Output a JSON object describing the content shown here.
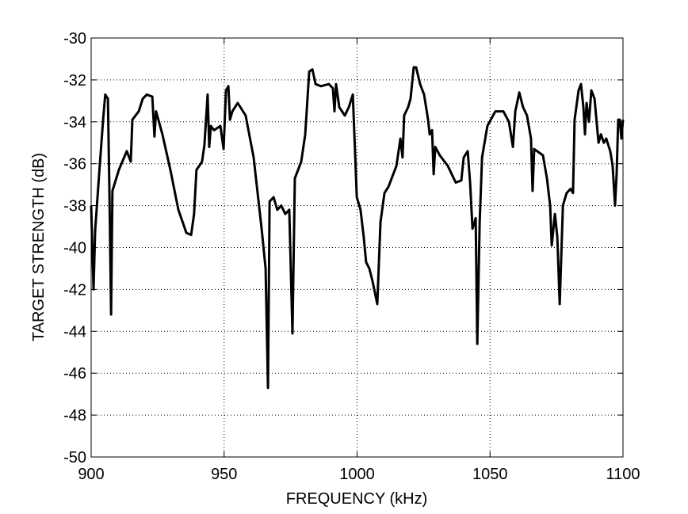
{
  "chart_data": {
    "type": "line",
    "xlabel": "FREQUENCY (kHz)",
    "ylabel": "TARGET STRENGTH (dB)",
    "xlim": [
      900,
      1100
    ],
    "xticks": [
      900,
      950,
      1000,
      1050,
      1100
    ],
    "ylim": [
      -50,
      -30
    ],
    "yticks": [
      -50,
      -48,
      -46,
      -44,
      -42,
      -40,
      -38,
      -36,
      -34,
      -32,
      -30
    ],
    "grid": true,
    "x": [
      900,
      900.9,
      901.5,
      903,
      904.5,
      905.3,
      906.3,
      906.9,
      907.5,
      908,
      910.4,
      913.4,
      914.9,
      915.5,
      917.9,
      919.4,
      920.9,
      923,
      923.8,
      924.4,
      926.8,
      929.8,
      932.8,
      935.8,
      937.6,
      938.7,
      939.6,
      941.7,
      942.6,
      943.8,
      944.4,
      945,
      946.2,
      948.6,
      949.8,
      950.7,
      951.6,
      952.2,
      953.1,
      955.1,
      958.1,
      961.1,
      964.1,
      965.6,
      966.5,
      967.1,
      968.6,
      970,
      971.5,
      973,
      974.5,
      975.7,
      976.6,
      979,
      980.5,
      982,
      983.2,
      984.4,
      986.4,
      989.4,
      990.9,
      991.5,
      992.1,
      993.3,
      995.4,
      996.9,
      998.4,
      999.9,
      1001.3,
      1002.5,
      1003.4,
      1004.6,
      1005.8,
      1007.6,
      1008.8,
      1010.3,
      1011.8,
      1014.8,
      1016.3,
      1017.1,
      1017.7,
      1019.2,
      1020.1,
      1021.3,
      1022.2,
      1023.7,
      1025.2,
      1026.7,
      1027.3,
      1028.2,
      1028.8,
      1029.4,
      1031.1,
      1034.1,
      1037.1,
      1039.2,
      1040.1,
      1041.6,
      1042.5,
      1043.4,
      1044.6,
      1045.2,
      1046.1,
      1047,
      1049,
      1052,
      1055,
      1057.1,
      1058.6,
      1059.5,
      1061,
      1062.4,
      1063.9,
      1065.4,
      1066,
      1066.6,
      1069.9,
      1071.4,
      1072.6,
      1073.2,
      1074.4,
      1075.3,
      1076.2,
      1077.4,
      1078.8,
      1080.3,
      1081.2,
      1081.8,
      1083.3,
      1084.2,
      1085.1,
      1085.7,
      1086.3,
      1087.2,
      1088.1,
      1089.3,
      1090.8,
      1091.7,
      1092.8,
      1093.7,
      1095.2,
      1096.1,
      1097,
      1097.6,
      1098.2,
      1098.8,
      1099.4,
      1100
    ],
    "series": [
      {
        "color": "#000000",
        "values": [
          -38,
          -42,
          -39.2,
          -36.5,
          -33.9,
          -32.7,
          -32.9,
          -37.6,
          -43.2,
          -37.3,
          -36.3,
          -35.4,
          -35.9,
          -33.9,
          -33.5,
          -32.9,
          -32.7,
          -32.8,
          -34.7,
          -33.5,
          -34.6,
          -36.3,
          -38.2,
          -39.3,
          -39.4,
          -38.4,
          -36.3,
          -35.9,
          -35.1,
          -32.7,
          -35.2,
          -34.2,
          -34.4,
          -34.2,
          -35.3,
          -32.5,
          -32.3,
          -33.9,
          -33.5,
          -33.1,
          -33.7,
          -35.7,
          -39.1,
          -41,
          -46.7,
          -37.8,
          -37.6,
          -38.2,
          -38,
          -38.4,
          -38.2,
          -44.1,
          -36.7,
          -35.9,
          -34.6,
          -31.6,
          -31.5,
          -32.2,
          -32.3,
          -32.2,
          -32.4,
          -33.5,
          -32.2,
          -33.3,
          -33.7,
          -33.3,
          -32.7,
          -37.6,
          -38.2,
          -39.5,
          -40.7,
          -41,
          -41.6,
          -42.7,
          -38.8,
          -37.4,
          -37.1,
          -36.1,
          -34.8,
          -35.7,
          -33.7,
          -33.3,
          -32.9,
          -31.4,
          -31.4,
          -32.2,
          -32.7,
          -33.9,
          -34.6,
          -34.4,
          -36.5,
          -35.2,
          -35.6,
          -36.1,
          -36.9,
          -36.8,
          -35.7,
          -35.4,
          -36.9,
          -39.1,
          -38.6,
          -44.6,
          -38.8,
          -35.7,
          -34.2,
          -33.5,
          -33.5,
          -34,
          -35.2,
          -33.5,
          -32.6,
          -33.3,
          -33.7,
          -34.8,
          -37.3,
          -35.3,
          -35.6,
          -36.7,
          -38,
          -39.9,
          -38.4,
          -39.5,
          -42.7,
          -38,
          -37.4,
          -37.2,
          -37.4,
          -33.9,
          -32.5,
          -32.2,
          -33.3,
          -34.6,
          -33.1,
          -34,
          -32.5,
          -32.9,
          -35,
          -34.6,
          -35,
          -34.8,
          -35.4,
          -36.1,
          -38,
          -36.5,
          -33.9,
          -33.9,
          -34.8,
          -33.9
        ]
      }
    ]
  }
}
